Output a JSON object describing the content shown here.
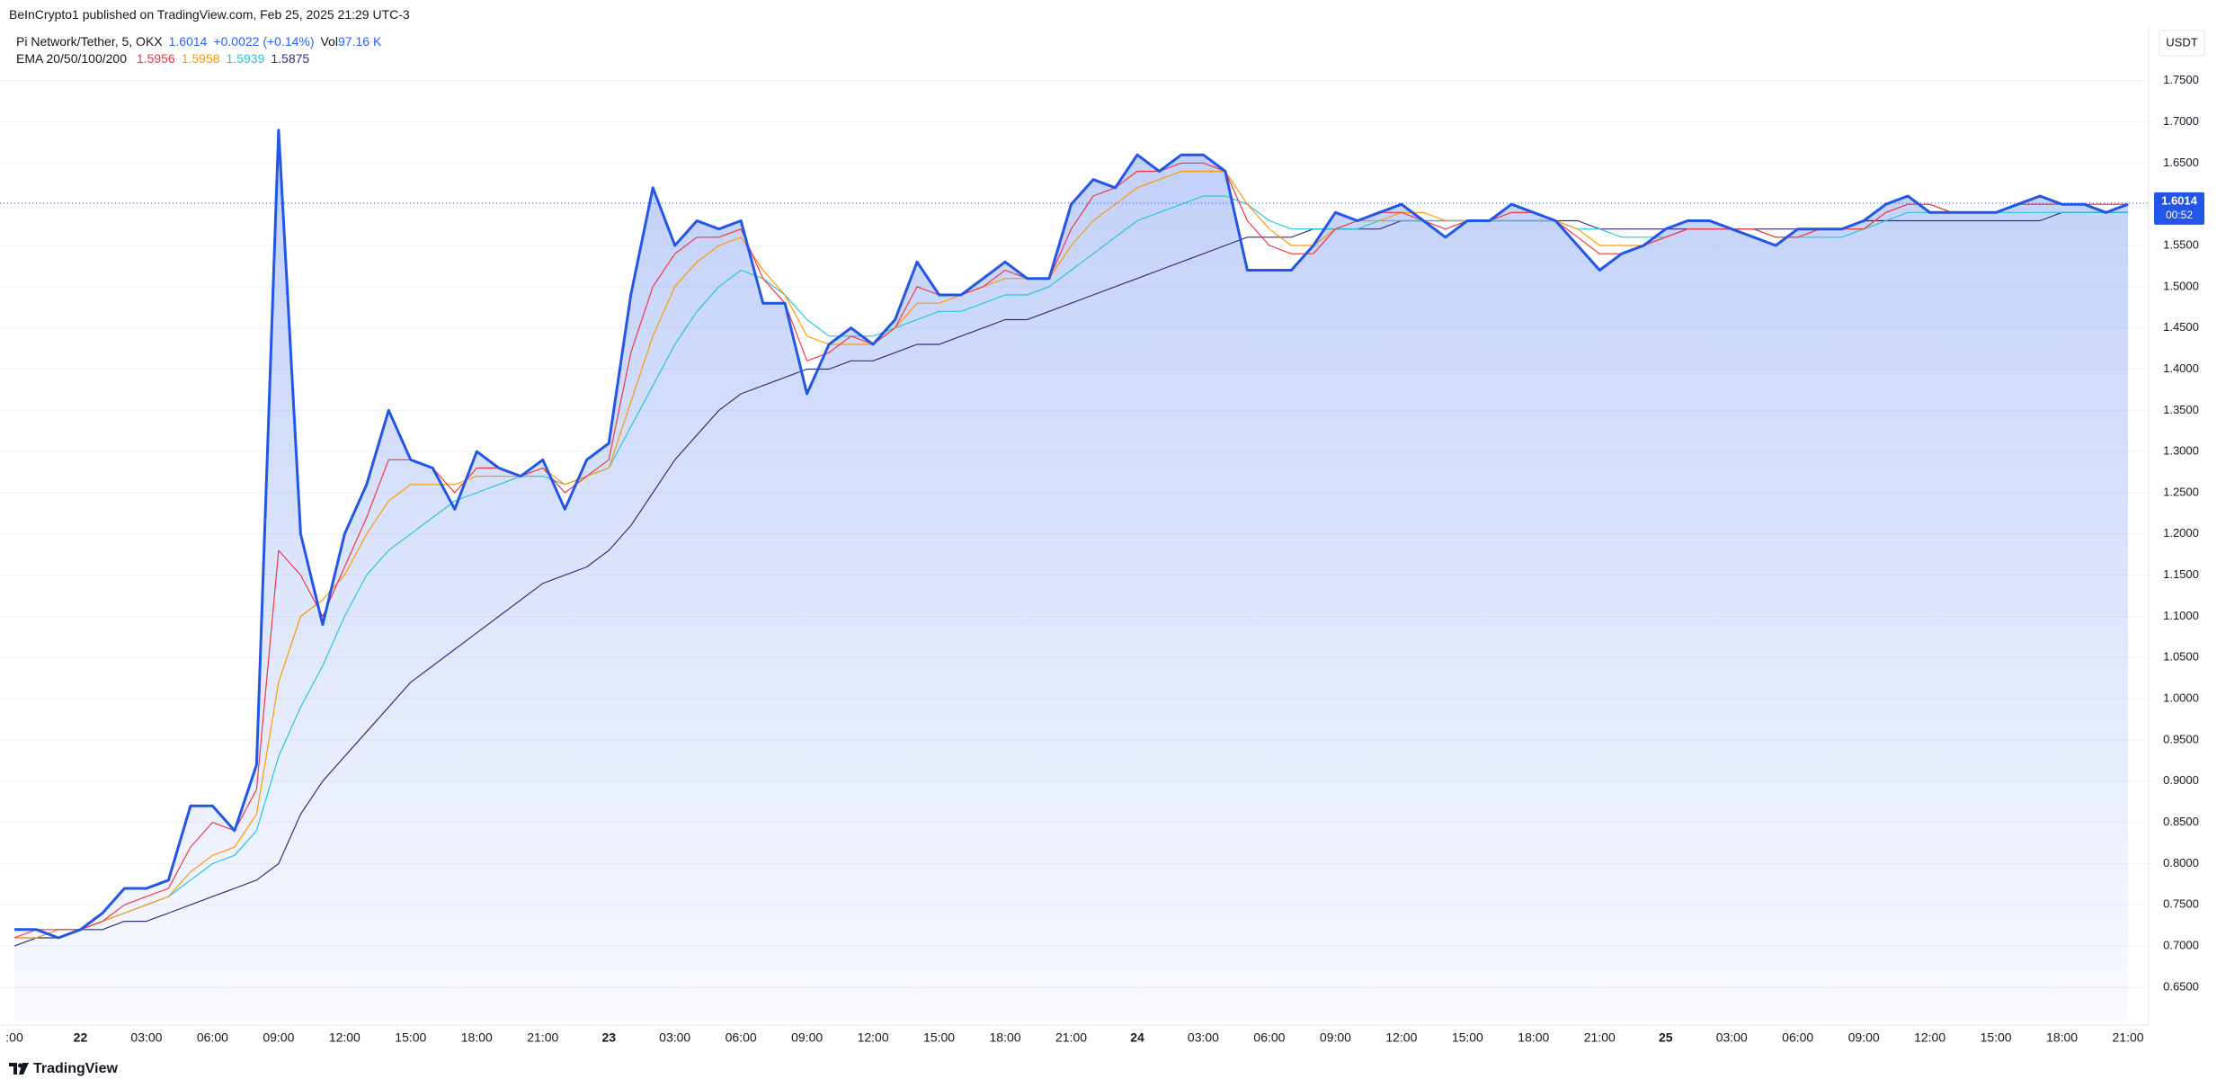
{
  "header": {
    "published": "BeInCrypto1 published on TradingView.com, Feb 25, 2025 21:29 UTC-3"
  },
  "legend": {
    "symbol": "Pi Network/Tether, 5, OKX",
    "change": "+0.0022 (+0.14%)",
    "vol_label": "Vol",
    "vol": "97.16 K",
    "ema_label": "EMA 20/50/100/200",
    "ema_values": [
      1.5956,
      1.5958,
      1.5939,
      1.5875
    ]
  },
  "footer": {
    "brand": "TradingView"
  },
  "chart_data": {
    "type": "line",
    "currency": "USDT",
    "last_price": 1.6014,
    "countdown": "00:52",
    "grid": true,
    "categories": [
      ":00",
      null,
      null,
      "22",
      null,
      null,
      "03:00",
      null,
      null,
      "06:00",
      null,
      null,
      "09:00",
      null,
      null,
      "12:00",
      null,
      null,
      "15:00",
      null,
      null,
      "18:00",
      null,
      null,
      "21:00",
      null,
      null,
      "23",
      null,
      null,
      "03:00",
      null,
      null,
      "06:00",
      null,
      null,
      "09:00",
      null,
      null,
      "12:00",
      null,
      null,
      "15:00",
      null,
      null,
      "18:00",
      null,
      null,
      "21:00",
      null,
      null,
      "24",
      null,
      null,
      "03:00",
      null,
      null,
      "06:00",
      null,
      null,
      "09:00",
      null,
      null,
      "12:00",
      null,
      null,
      "15:00",
      null,
      null,
      "18:00",
      null,
      null,
      "21:00",
      null,
      null,
      "25",
      null,
      null,
      "03:00",
      null,
      null,
      "06:00",
      null,
      null,
      "09:00",
      null,
      null,
      "12:00",
      null,
      null,
      "15:00",
      null,
      null,
      "18:00",
      null,
      null,
      "21:00"
    ],
    "series": [
      {
        "color": "#2156e8",
        "area": true,
        "width": 3,
        "values": [
          0.72,
          0.72,
          0.71,
          0.72,
          0.74,
          0.77,
          0.77,
          0.78,
          0.87,
          0.87,
          0.84,
          0.92,
          1.69,
          1.2,
          1.09,
          1.2,
          1.26,
          1.35,
          1.29,
          1.28,
          1.23,
          1.3,
          1.28,
          1.27,
          1.29,
          1.23,
          1.29,
          1.31,
          1.49,
          1.62,
          1.55,
          1.58,
          1.57,
          1.58,
          1.48,
          1.48,
          1.37,
          1.43,
          1.45,
          1.43,
          1.46,
          1.53,
          1.49,
          1.49,
          1.51,
          1.53,
          1.51,
          1.51,
          1.6,
          1.63,
          1.62,
          1.66,
          1.64,
          1.66,
          1.66,
          1.64,
          1.52,
          1.52,
          1.52,
          1.55,
          1.59,
          1.58,
          1.59,
          1.6,
          1.58,
          1.56,
          1.58,
          1.58,
          1.6,
          1.59,
          1.58,
          1.55,
          1.52,
          1.54,
          1.55,
          1.57,
          1.58,
          1.58,
          1.57,
          1.56,
          1.55,
          1.57,
          1.57,
          1.57,
          1.58,
          1.6,
          1.61,
          1.59,
          1.59,
          1.59,
          1.59,
          1.6,
          1.61,
          1.6,
          1.6,
          1.59,
          1.6
        ]
      },
      {
        "color": "#f23645",
        "width": 1.2,
        "values": [
          0.71,
          0.72,
          0.72,
          0.72,
          0.73,
          0.75,
          0.76,
          0.77,
          0.82,
          0.85,
          0.84,
          0.89,
          1.18,
          1.15,
          1.1,
          1.16,
          1.22,
          1.29,
          1.29,
          1.28,
          1.25,
          1.28,
          1.28,
          1.27,
          1.28,
          1.25,
          1.27,
          1.29,
          1.42,
          1.5,
          1.54,
          1.56,
          1.56,
          1.57,
          1.51,
          1.48,
          1.41,
          1.42,
          1.44,
          1.43,
          1.45,
          1.5,
          1.49,
          1.49,
          1.5,
          1.52,
          1.51,
          1.51,
          1.57,
          1.61,
          1.62,
          1.64,
          1.64,
          1.65,
          1.65,
          1.64,
          1.58,
          1.55,
          1.54,
          1.54,
          1.57,
          1.58,
          1.59,
          1.59,
          1.58,
          1.57,
          1.58,
          1.58,
          1.59,
          1.59,
          1.58,
          1.56,
          1.54,
          1.54,
          1.55,
          1.56,
          1.57,
          1.57,
          1.57,
          1.57,
          1.56,
          1.56,
          1.57,
          1.57,
          1.57,
          1.59,
          1.6,
          1.6,
          1.59,
          1.59,
          1.59,
          1.6,
          1.6,
          1.6,
          1.6,
          1.6,
          1.6
        ]
      },
      {
        "color": "#ff9800",
        "width": 1.2,
        "values": [
          0.71,
          0.71,
          0.72,
          0.72,
          0.73,
          0.74,
          0.75,
          0.76,
          0.79,
          0.81,
          0.82,
          0.86,
          1.02,
          1.1,
          1.12,
          1.15,
          1.2,
          1.24,
          1.26,
          1.26,
          1.26,
          1.27,
          1.27,
          1.27,
          1.28,
          1.26,
          1.27,
          1.28,
          1.36,
          1.44,
          1.5,
          1.53,
          1.55,
          1.56,
          1.52,
          1.49,
          1.44,
          1.43,
          1.43,
          1.43,
          1.45,
          1.48,
          1.48,
          1.49,
          1.5,
          1.51,
          1.51,
          1.51,
          1.55,
          1.58,
          1.6,
          1.62,
          1.63,
          1.64,
          1.64,
          1.64,
          1.6,
          1.57,
          1.55,
          1.55,
          1.57,
          1.58,
          1.58,
          1.59,
          1.59,
          1.58,
          1.58,
          1.58,
          1.59,
          1.59,
          1.58,
          1.57,
          1.55,
          1.55,
          1.55,
          1.56,
          1.57,
          1.57,
          1.57,
          1.57,
          1.56,
          1.56,
          1.57,
          1.57,
          1.57,
          1.59,
          1.6,
          1.6,
          1.59,
          1.59,
          1.59,
          1.6,
          1.6,
          1.6,
          1.6,
          1.6,
          1.6
        ]
      },
      {
        "color": "#26c6da",
        "width": 1.2,
        "values": [
          0.71,
          0.71,
          0.72,
          0.72,
          0.73,
          0.74,
          0.75,
          0.76,
          0.78,
          0.8,
          0.81,
          0.84,
          0.93,
          0.99,
          1.04,
          1.1,
          1.15,
          1.18,
          1.2,
          1.22,
          1.24,
          1.25,
          1.26,
          1.27,
          1.27,
          1.26,
          1.27,
          1.28,
          1.33,
          1.38,
          1.43,
          1.47,
          1.5,
          1.52,
          1.51,
          1.49,
          1.46,
          1.44,
          1.44,
          1.44,
          1.45,
          1.46,
          1.47,
          1.47,
          1.48,
          1.49,
          1.49,
          1.5,
          1.52,
          1.54,
          1.56,
          1.58,
          1.59,
          1.6,
          1.61,
          1.61,
          1.6,
          1.58,
          1.57,
          1.57,
          1.57,
          1.57,
          1.58,
          1.58,
          1.58,
          1.58,
          1.58,
          1.58,
          1.58,
          1.58,
          1.58,
          1.57,
          1.57,
          1.56,
          1.56,
          1.56,
          1.57,
          1.57,
          1.57,
          1.57,
          1.56,
          1.56,
          1.56,
          1.56,
          1.57,
          1.58,
          1.59,
          1.59,
          1.59,
          1.59,
          1.59,
          1.59,
          1.59,
          1.59,
          1.59,
          1.59,
          1.59
        ]
      },
      {
        "color": "#3b2a7a",
        "width": 1.2,
        "values": [
          0.7,
          0.71,
          0.71,
          0.72,
          0.72,
          0.73,
          0.73,
          0.74,
          0.75,
          0.76,
          0.77,
          0.78,
          0.8,
          0.86,
          0.9,
          0.93,
          0.96,
          0.99,
          1.02,
          1.04,
          1.06,
          1.08,
          1.1,
          1.12,
          1.14,
          1.15,
          1.16,
          1.18,
          1.21,
          1.25,
          1.29,
          1.32,
          1.35,
          1.37,
          1.38,
          1.39,
          1.4,
          1.4,
          1.41,
          1.41,
          1.42,
          1.43,
          1.43,
          1.44,
          1.45,
          1.46,
          1.46,
          1.47,
          1.48,
          1.49,
          1.5,
          1.51,
          1.52,
          1.53,
          1.54,
          1.55,
          1.56,
          1.56,
          1.56,
          1.57,
          1.57,
          1.57,
          1.57,
          1.58,
          1.58,
          1.58,
          1.58,
          1.58,
          1.58,
          1.58,
          1.58,
          1.58,
          1.57,
          1.57,
          1.57,
          1.57,
          1.57,
          1.57,
          1.57,
          1.57,
          1.57,
          1.57,
          1.57,
          1.57,
          1.58,
          1.58,
          1.58,
          1.58,
          1.58,
          1.58,
          1.58,
          1.58,
          1.58,
          1.59,
          1.59,
          1.59,
          1.59
        ]
      }
    ],
    "ylim": [
      0.6085,
      1.814
    ],
    "yticks": [
      {
        "value": 0.65,
        "label": "0.6500"
      },
      {
        "value": 0.7,
        "label": "0.7000"
      },
      {
        "value": 0.75,
        "label": "0.7500"
      },
      {
        "value": 0.8,
        "label": "0.8000"
      },
      {
        "value": 0.85,
        "label": "0.8500"
      },
      {
        "value": 0.9,
        "label": "0.9000"
      },
      {
        "value": 0.95,
        "label": "0.9500"
      },
      {
        "value": 1.0,
        "label": "1.0000"
      },
      {
        "value": 1.05,
        "label": "1.0500"
      },
      {
        "value": 1.1,
        "label": "1.1000"
      },
      {
        "value": 1.15,
        "label": "1.1500"
      },
      {
        "value": 1.2,
        "label": "1.2000"
      },
      {
        "value": 1.25,
        "label": "1.2500"
      },
      {
        "value": 1.3,
        "label": "1.3000"
      },
      {
        "value": 1.35,
        "label": "1.3500"
      },
      {
        "value": 1.4,
        "label": "1.4000"
      },
      {
        "value": 1.45,
        "label": "1.4500"
      },
      {
        "value": 1.5,
        "label": "1.5000"
      },
      {
        "value": 1.55,
        "label": "1.5500"
      },
      {
        "value": 1.6,
        "label": "1.6000"
      },
      {
        "value": 1.65,
        "label": "1.6500"
      },
      {
        "value": 1.7,
        "label": "1.7000"
      },
      {
        "value": 1.75,
        "label": "1.7500"
      }
    ]
  }
}
